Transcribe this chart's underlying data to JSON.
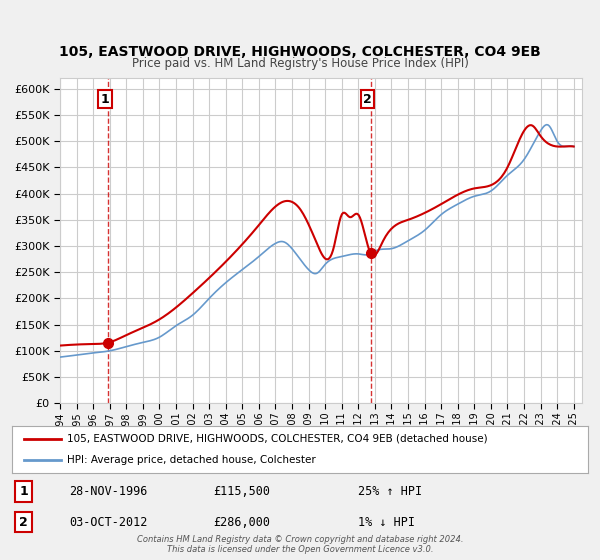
{
  "title1": "105, EASTWOOD DRIVE, HIGHWOODS, COLCHESTER, CO4 9EB",
  "title2": "Price paid vs. HM Land Registry's House Price Index (HPI)",
  "legend_line1": "105, EASTWOOD DRIVE, HIGHWOODS, COLCHESTER, CO4 9EB (detached house)",
  "legend_line2": "HPI: Average price, detached house, Colchester",
  "annotation1_label": "1",
  "annotation1_date": "28-NOV-1996",
  "annotation1_price": "£115,500",
  "annotation1_hpi": "25% ↑ HPI",
  "annotation2_label": "2",
  "annotation2_date": "03-OCT-2012",
  "annotation2_price": "£286,000",
  "annotation2_hpi": "1% ↓ HPI",
  "footer": "Contains HM Land Registry data © Crown copyright and database right 2024.\nThis data is licensed under the Open Government Licence v3.0.",
  "red_color": "#cc0000",
  "blue_color": "#6699cc",
  "grid_color": "#cccccc",
  "background_color": "#f0f0f0",
  "plot_bg_color": "#ffffff",
  "ylim": [
    0,
    620000
  ],
  "xlim_start": 1994.0,
  "xlim_end": 2025.5,
  "marker1_x": 1996.9,
  "marker1_y": 115500,
  "marker2_x": 2012.75,
  "marker2_y": 286000
}
